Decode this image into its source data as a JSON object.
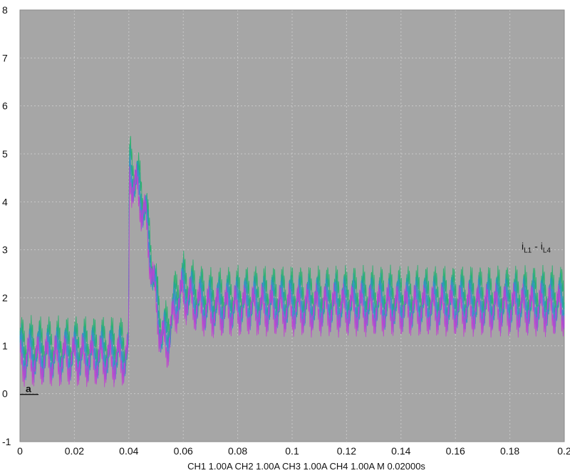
{
  "chart_data": {
    "type": "line",
    "xlim": [
      0,
      0.2
    ],
    "ylim": [
      -1,
      8
    ],
    "x_ticks": [
      0,
      0.02,
      0.04,
      0.06,
      0.08,
      0.1,
      0.12,
      0.14,
      0.16,
      0.18,
      0.2
    ],
    "x_tick_labels": [
      "0",
      "0.02",
      "0.04",
      "0.06",
      "0.08",
      "0.1",
      "0.12",
      "0.14",
      "0.16",
      "0.18",
      "0.2"
    ],
    "y_ticks": [
      -1,
      0,
      1,
      2,
      3,
      4,
      5,
      6,
      7,
      8
    ],
    "y_tick_labels": [
      "-1",
      "0",
      "1",
      "2",
      "3",
      "4",
      "5",
      "6",
      "7",
      "8"
    ],
    "grid": true,
    "background_color": "#a6a6a6",
    "grid_color": "#c8c8c8",
    "footer": "CH1 1.00A  CH2 1.00A  CH3 1.00A  CH4 1.00A  M 0.02000s",
    "annotation": {
      "base": "i",
      "sub1": "L1",
      "mid": " - i",
      "sub2": "L4"
    },
    "marker_label": "a",
    "marker_y": 0,
    "envelope": {
      "x": [
        0,
        0.039,
        0.0399,
        0.0402,
        0.042,
        0.044,
        0.046,
        0.048,
        0.05,
        0.052,
        0.054,
        0.056,
        0.058,
        0.06,
        0.065,
        0.07,
        0.08,
        0.1,
        0.14,
        0.2
      ],
      "mean": [
        0.85,
        0.85,
        0.85,
        4.7,
        4.5,
        4.2,
        3.8,
        2.9,
        2.0,
        1.25,
        1.15,
        1.6,
        2.05,
        2.2,
        1.95,
        1.85,
        1.9,
        1.9,
        1.9,
        1.9
      ]
    },
    "series": [
      {
        "color": "#21b36a",
        "offset": 0.22
      },
      {
        "color": "#1fa0a6",
        "offset": 0.05
      },
      {
        "color": "#3f88d6",
        "offset": -0.07
      },
      {
        "color": "#c23ed1",
        "offset": -0.16
      }
    ],
    "ripple_period": 0.0033,
    "ripple_amplitude": 0.35,
    "switching_period": 0.0005,
    "switching_amplitude": 0.22
  }
}
